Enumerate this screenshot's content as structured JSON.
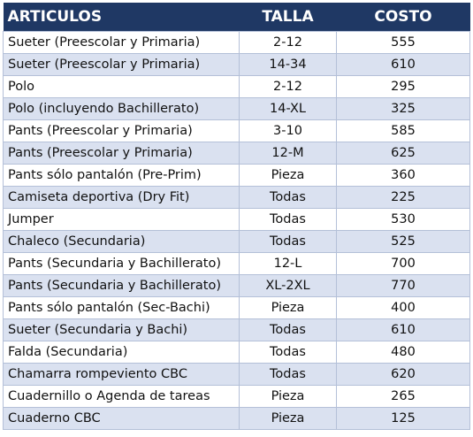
{
  "table": {
    "header": [
      "ARTICULOS",
      "TALLA",
      "COSTO"
    ],
    "rows": [
      [
        "Sueter (Preescolar y Primaria)",
        "2-12",
        "555"
      ],
      [
        "Sueter (Preescolar y Primaria)",
        "14-34",
        "610"
      ],
      [
        "Polo",
        "2-12",
        "295"
      ],
      [
        "Polo (incluyendo Bachillerato)",
        "14-XL",
        "325"
      ],
      [
        "Pants (Preescolar y Primaria)",
        "3-10",
        "585"
      ],
      [
        "Pants (Preescolar y Primaria)",
        "12-M",
        "625"
      ],
      [
        "Pants sólo pantalón (Pre-Prim)",
        "Pieza",
        "360"
      ],
      [
        "Camiseta deportiva (Dry Fit)",
        "Todas",
        "225"
      ],
      [
        "Jumper",
        "Todas",
        "530"
      ],
      [
        "Chaleco (Secundaria)",
        "Todas",
        "525"
      ],
      [
        "Pants (Secundaria y Bachillerato)",
        "12-L",
        "700"
      ],
      [
        "Pants (Secundaria y Bachillerato)",
        "XL-2XL",
        "770"
      ],
      [
        "Pants sólo pantalón (Sec-Bachi)",
        "Pieza",
        "400"
      ],
      [
        "Sueter (Secundaria y Bachi)",
        "Todas",
        "610"
      ],
      [
        "Falda (Secundaria)",
        "Todas",
        "480"
      ],
      [
        "Chamarra rompeviento CBC",
        "Todas",
        "620"
      ],
      [
        "Cuadernillo o Agenda de tareas",
        "Pieza",
        "265"
      ],
      [
        "Cuaderno CBC",
        "Pieza",
        "125"
      ]
    ]
  }
}
